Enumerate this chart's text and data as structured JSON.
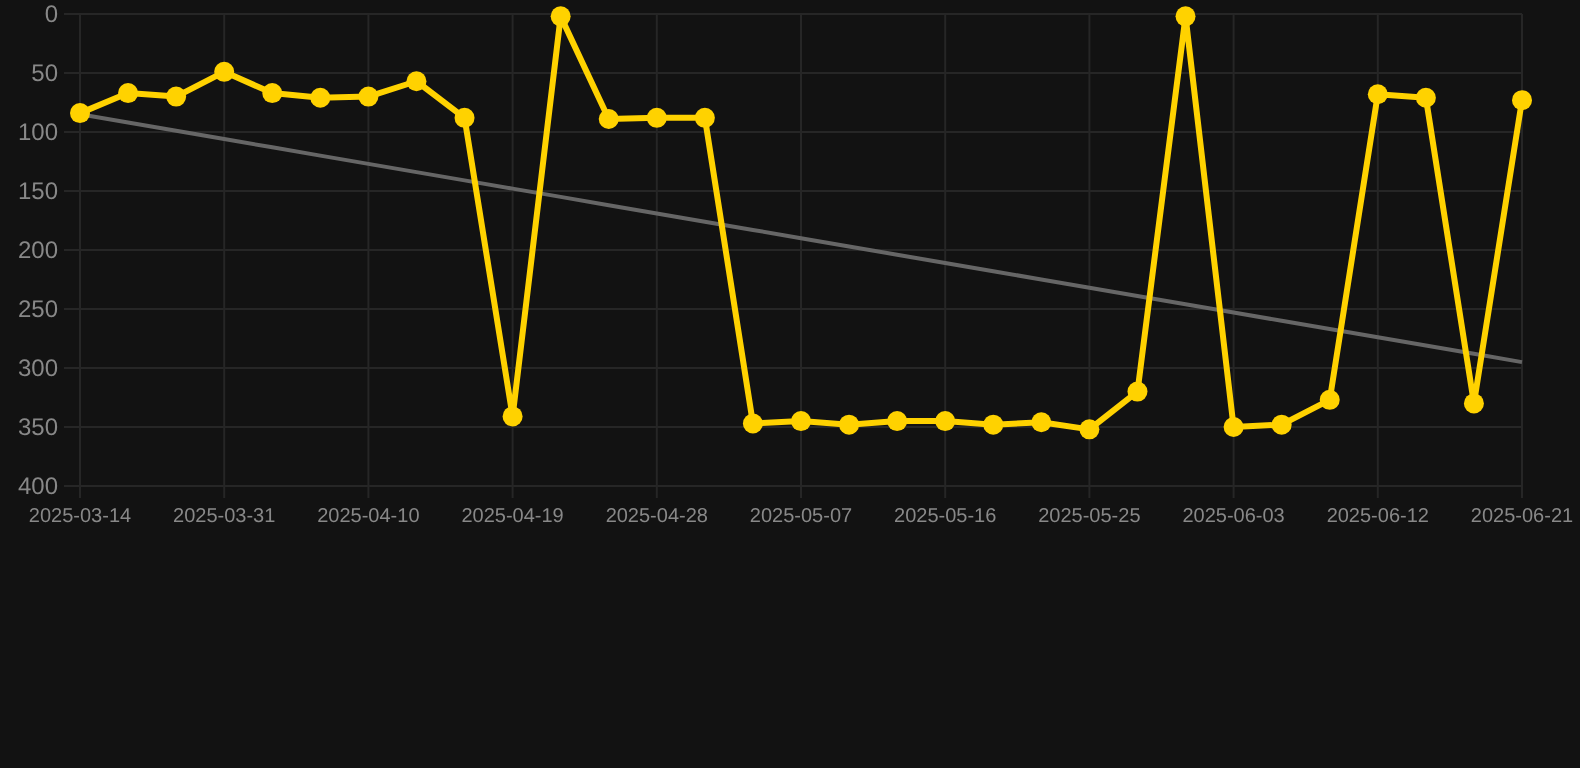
{
  "chart_data": {
    "type": "line",
    "categories": [
      "2025-03-14",
      null,
      null,
      "2025-03-31",
      null,
      null,
      "2025-04-10",
      null,
      null,
      "2025-04-19",
      null,
      null,
      "2025-04-28",
      null,
      null,
      "2025-05-07",
      null,
      null,
      "2025-05-16",
      null,
      null,
      "2025-05-25",
      null,
      null,
      "2025-06-03",
      null,
      null,
      "2025-06-12",
      null,
      null,
      "2025-06-21"
    ],
    "series": [
      {
        "color": "#ffd200",
        "marker": "circle",
        "values": [
          84,
          67,
          70,
          49,
          67,
          71,
          70,
          57,
          88,
          341,
          2,
          89,
          88,
          88,
          347,
          345,
          348,
          345,
          345,
          348,
          346,
          352,
          320,
          2,
          350,
          348,
          327,
          68,
          71,
          330,
          73
        ]
      },
      {
        "color": "#666666",
        "marker": "none",
        "values": [
          85,
          92,
          99,
          106,
          113,
          120,
          127,
          134,
          141,
          148,
          155,
          162,
          169,
          176,
          183,
          190,
          197,
          204,
          211,
          218,
          225,
          232,
          239,
          246,
          253,
          260,
          267,
          274,
          281,
          288,
          295
        ]
      }
    ],
    "ylim": [
      400,
      0
    ],
    "yticks": [
      0,
      50,
      100,
      150,
      200,
      250,
      300,
      350,
      400
    ],
    "grid": true
  }
}
